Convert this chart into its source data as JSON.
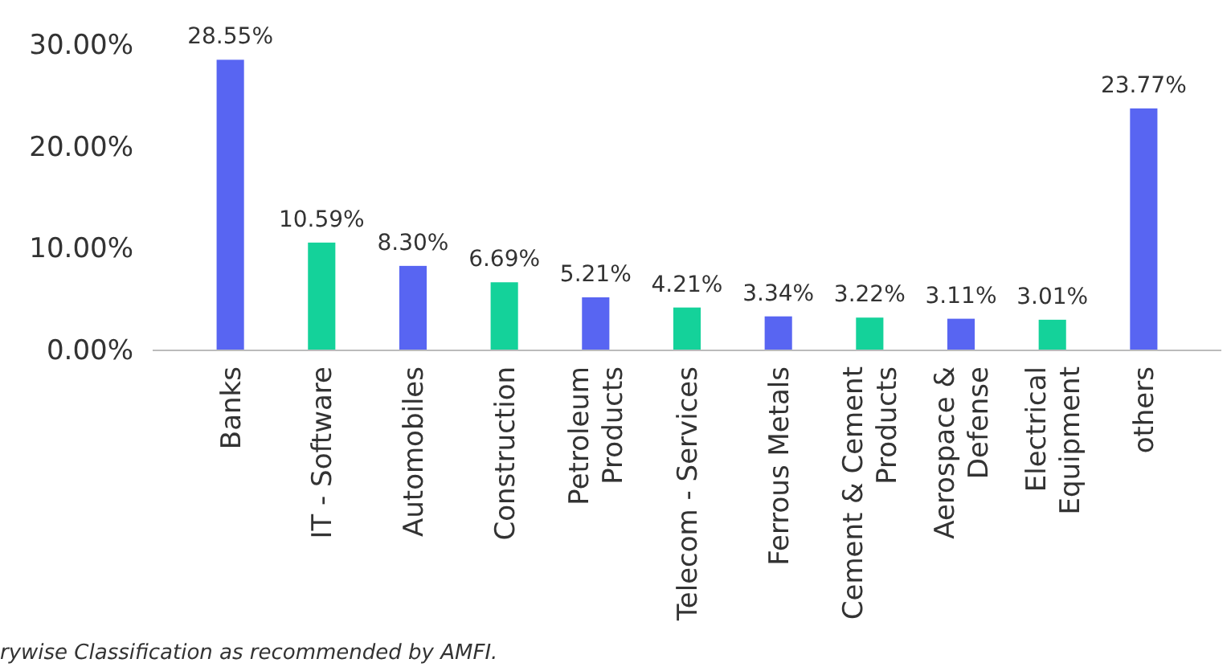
{
  "chart_data": {
    "type": "bar",
    "categories": [
      "Banks",
      "IT - Software",
      "Automobiles",
      "Construction",
      "Petroleum\nProducts",
      "Telecom - Services",
      "Ferrous Metals",
      "Cement & Cement\nProducts",
      "Aerospace &\nDefense",
      "Electrical\nEquipment",
      "others"
    ],
    "values": [
      28.55,
      10.59,
      8.3,
      6.69,
      5.21,
      4.21,
      3.34,
      3.22,
      3.11,
      3.01,
      23.77
    ],
    "colors": [
      "#5865f2",
      "#14d29a",
      "#5865f2",
      "#14d29a",
      "#5865f2",
      "#14d29a",
      "#5865f2",
      "#14d29a",
      "#5865f2",
      "#14d29a",
      "#5865f2"
    ],
    "value_labels": [
      "28.55%",
      "10.59%",
      "8.30%",
      "6.69%",
      "5.21%",
      "4.21%",
      "3.34%",
      "3.22%",
      "3.11%",
      "3.01%",
      "23.77%"
    ],
    "ylim": [
      0,
      30
    ],
    "yticks": [
      {
        "value": 0,
        "label": "0.00%"
      },
      {
        "value": 10,
        "label": "10.00%"
      },
      {
        "value": 20,
        "label": "20.00%"
      },
      {
        "value": 30,
        "label": "30.00%"
      }
    ],
    "grid": false,
    "annotations": [
      "rywise Classification as recommended by AMFI."
    ]
  }
}
